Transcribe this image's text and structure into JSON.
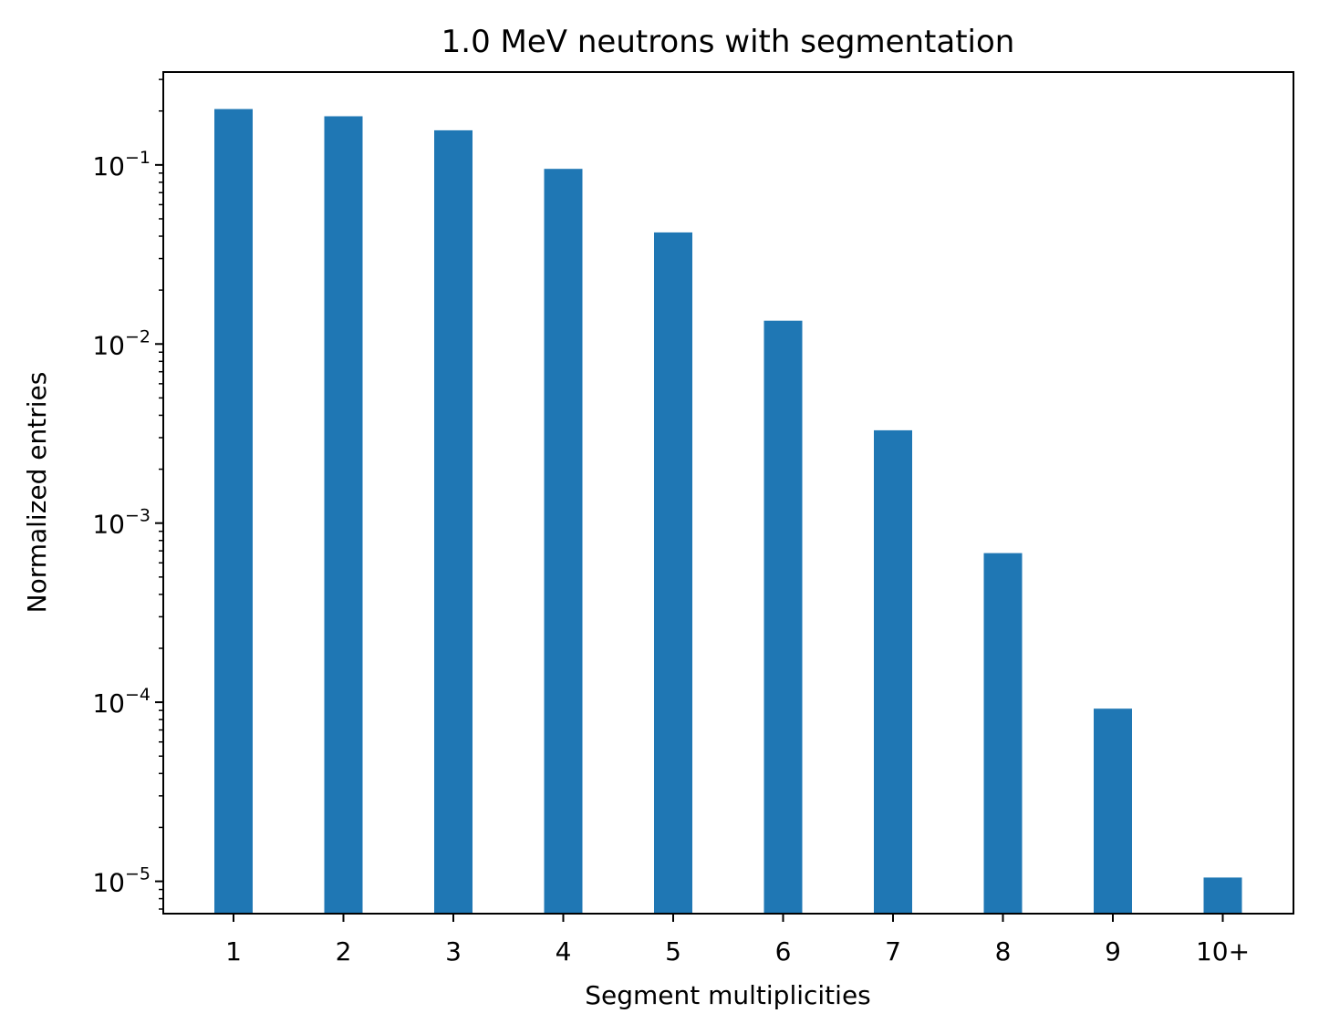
{
  "chart_data": {
    "type": "bar",
    "title": "1.0 MeV neutrons with segmentation",
    "xlabel": "Segment multiplicities",
    "ylabel": "Normalized entries",
    "yscale": "log",
    "ylim": [
      6.6e-06,
      0.33
    ],
    "categories": [
      "1",
      "2",
      "3",
      "4",
      "5",
      "6",
      "7",
      "8",
      "9",
      "10+"
    ],
    "values": [
      0.205,
      0.187,
      0.156,
      0.095,
      0.042,
      0.0135,
      0.0033,
      0.00068,
      9.2e-05,
      1.05e-05
    ],
    "yticks": [
      {
        "base": "10",
        "exp": "−5",
        "value": 1e-05
      },
      {
        "base": "10",
        "exp": "−4",
        "value": 0.0001
      },
      {
        "base": "10",
        "exp": "−3",
        "value": 0.001
      },
      {
        "base": "10",
        "exp": "−2",
        "value": 0.01
      },
      {
        "base": "10",
        "exp": "−1",
        "value": 0.1
      }
    ],
    "bar_color": "#1f77b4",
    "grid": false,
    "legend": "none"
  }
}
